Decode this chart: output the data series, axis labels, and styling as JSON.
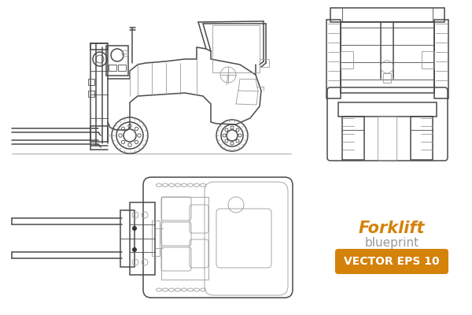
{
  "background_color": "#ffffff",
  "line_color": "#4a4a4a",
  "line_color_light": "#999999",
  "orange_color": "#D4820A",
  "orange_bg": "#D4820A",
  "title_text": "Forklift",
  "subtitle_text": "blueprint",
  "badge_text": "VECTOR EPS 10",
  "title_fontsize": 15,
  "subtitle_fontsize": 11,
  "badge_fontsize": 10,
  "lw": 1.1,
  "lw_thin": 0.6
}
